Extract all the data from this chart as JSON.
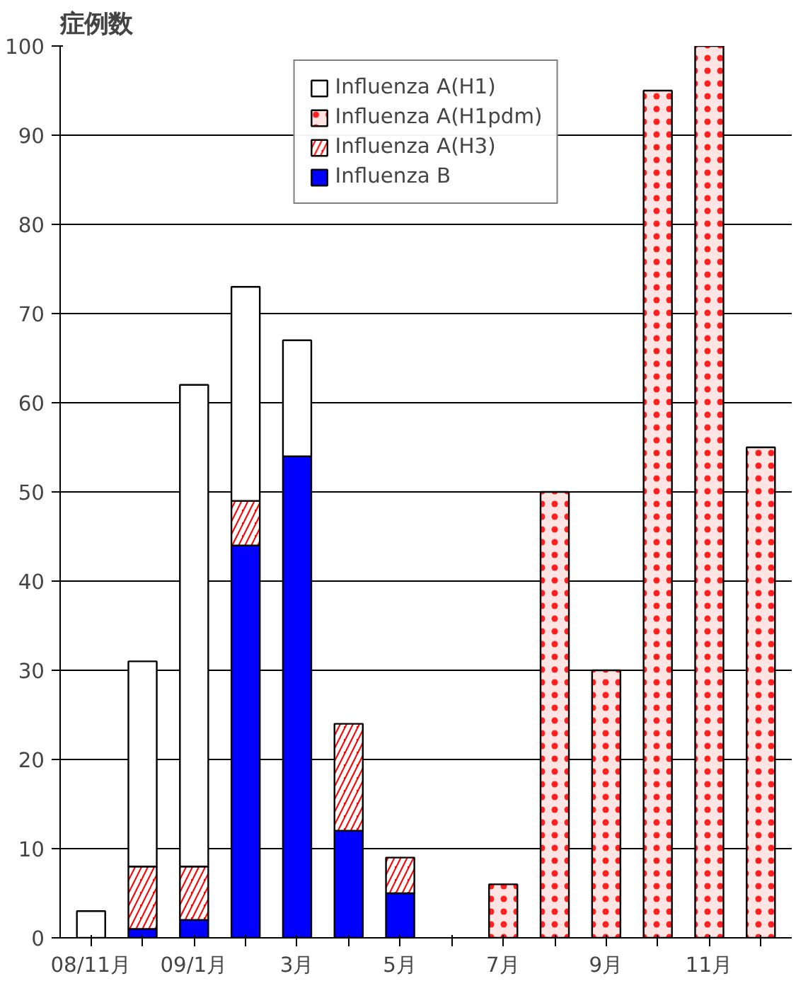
{
  "chart_data": {
    "type": "bar",
    "stacked": true,
    "ylabel": "症例数",
    "categories": [
      "08/11月",
      null,
      "09/1月",
      null,
      "3月",
      null,
      "5月",
      null,
      "7月",
      null,
      "9月",
      null,
      "11月",
      null
    ],
    "series": [
      {
        "name": "Influenza B",
        "color": "#0000ff",
        "values": [
          null,
          1,
          2,
          44,
          54,
          12,
          5,
          null,
          null,
          null,
          null,
          null,
          null,
          null
        ]
      },
      {
        "name": "Influenza A(H3)",
        "color": "#ff0000",
        "values": [
          null,
          7,
          6,
          5,
          null,
          12,
          4,
          null,
          null,
          null,
          null,
          null,
          null,
          null
        ]
      },
      {
        "name": "Influenza A(H1pdm)",
        "color": "#ffe4e4",
        "values": [
          null,
          null,
          null,
          null,
          null,
          null,
          null,
          null,
          6,
          50,
          30,
          95,
          100,
          55
        ]
      },
      {
        "name": "Influenza A(H1)",
        "color": "#ffffff",
        "values": [
          3,
          23,
          54,
          24,
          13,
          null,
          null,
          null,
          null,
          null,
          null,
          null,
          null,
          null
        ]
      }
    ],
    "ylim": [
      0,
      100
    ],
    "yticks": [
      0,
      10,
      20,
      30,
      40,
      50,
      60,
      70,
      80,
      90,
      100
    ],
    "grid": "y",
    "legend": "top"
  }
}
